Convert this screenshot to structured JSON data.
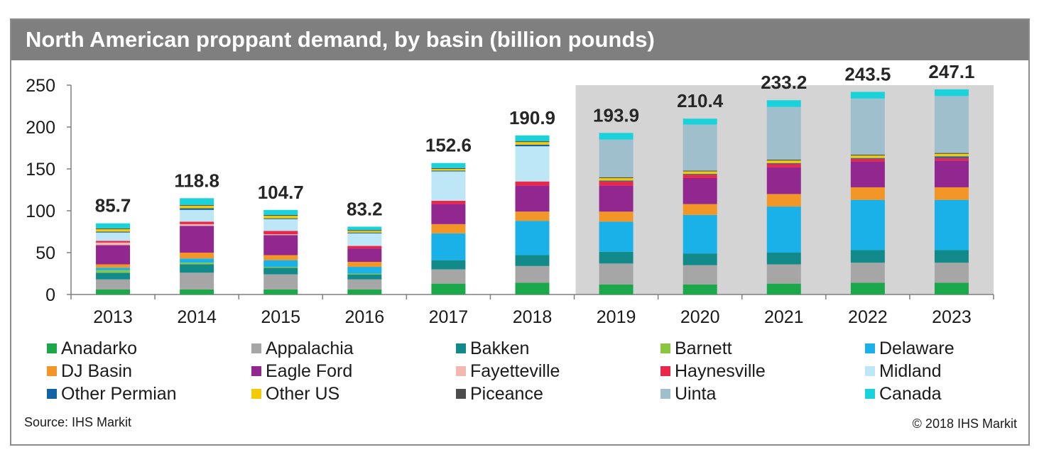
{
  "title": "North American proppant demand, by basin (billion pounds)",
  "source": "Source: IHS Markit",
  "copyright": "© 2018 IHS Markit",
  "chart_data": {
    "type": "bar",
    "stacked": true,
    "title": "North American proppant demand, by basin (billion pounds)",
    "xlabel": "",
    "ylabel": "",
    "ylim": [
      0,
      250
    ],
    "yticks": [
      0,
      50,
      100,
      150,
      200,
      250
    ],
    "grid": false,
    "legend_position": "bottom",
    "shaded_forecast_start": "2019",
    "categories": [
      "2013",
      "2014",
      "2015",
      "2016",
      "2017",
      "2018",
      "2019",
      "2020",
      "2021",
      "2022",
      "2023"
    ],
    "totals": [
      "85.7",
      "118.8",
      "104.7",
      "83.2",
      "152.6",
      "190.9",
      "193.9",
      "210.4",
      "233.2",
      "243.5",
      "247.1"
    ],
    "series": [
      {
        "name": "Anadarko",
        "color": "#1aa84a",
        "values": [
          6,
          6,
          6,
          6,
          13,
          14,
          12,
          12,
          13,
          14,
          14
        ]
      },
      {
        "name": "Appalachia",
        "color": "#a6a6a6",
        "values": [
          12,
          20,
          18,
          12,
          17,
          20,
          25,
          23,
          23,
          24,
          24
        ]
      },
      {
        "name": "Bakken",
        "color": "#138a8a",
        "values": [
          8,
          10,
          8,
          6,
          11,
          13,
          14,
          14,
          14,
          15,
          15
        ]
      },
      {
        "name": "Barnett",
        "color": "#8ac640",
        "values": [
          3,
          2,
          1,
          1,
          0,
          0,
          0,
          0,
          0,
          0,
          0
        ]
      },
      {
        "name": "Delaware",
        "color": "#1ab0e8",
        "values": [
          3,
          5,
          8,
          8,
          32,
          41,
          36,
          46,
          55,
          60,
          60
        ]
      },
      {
        "name": "DJ Basin",
        "color": "#f29627",
        "values": [
          4,
          7,
          6,
          6,
          11,
          11,
          12,
          13,
          15,
          15,
          15
        ]
      },
      {
        "name": "Eagle Ford",
        "color": "#92278f",
        "values": [
          23,
          32,
          24,
          16,
          24,
          31,
          31,
          31,
          32,
          31,
          32
        ]
      },
      {
        "name": "Fayetteville",
        "color": "#f5b8b0",
        "values": [
          3,
          2,
          1,
          0,
          0,
          0,
          0,
          0,
          0,
          0,
          0
        ]
      },
      {
        "name": "Haynesville",
        "color": "#e8274b",
        "values": [
          2,
          3,
          4,
          3,
          4,
          5,
          5,
          4,
          4,
          3,
          3
        ]
      },
      {
        "name": "Midland",
        "color": "#bde6f6",
        "values": [
          10,
          14,
          14,
          15,
          35,
          42,
          0,
          0,
          0,
          0,
          0
        ]
      },
      {
        "name": "Other Permian",
        "color": "#1262a6",
        "values": [
          1,
          2,
          1,
          1,
          1,
          2,
          1,
          1,
          1,
          1,
          2
        ]
      },
      {
        "name": "Other US",
        "color": "#f2cb05",
        "values": [
          3,
          3,
          3,
          2,
          2,
          3,
          3,
          3,
          3,
          3,
          3
        ]
      },
      {
        "name": "Piceance",
        "color": "#4d4d4d",
        "values": [
          1,
          1,
          1,
          1,
          1,
          1,
          1,
          1,
          1,
          1,
          1
        ]
      },
      {
        "name": "Uinta",
        "color": "#9fbfcc",
        "values": [
          0,
          0,
          0,
          0,
          0,
          0,
          45,
          55,
          63,
          67,
          68
        ]
      },
      {
        "name": "Canada",
        "color": "#1ad2d9",
        "values": [
          6,
          8,
          6,
          4,
          6,
          7,
          8,
          7,
          8,
          8,
          8
        ]
      }
    ]
  }
}
